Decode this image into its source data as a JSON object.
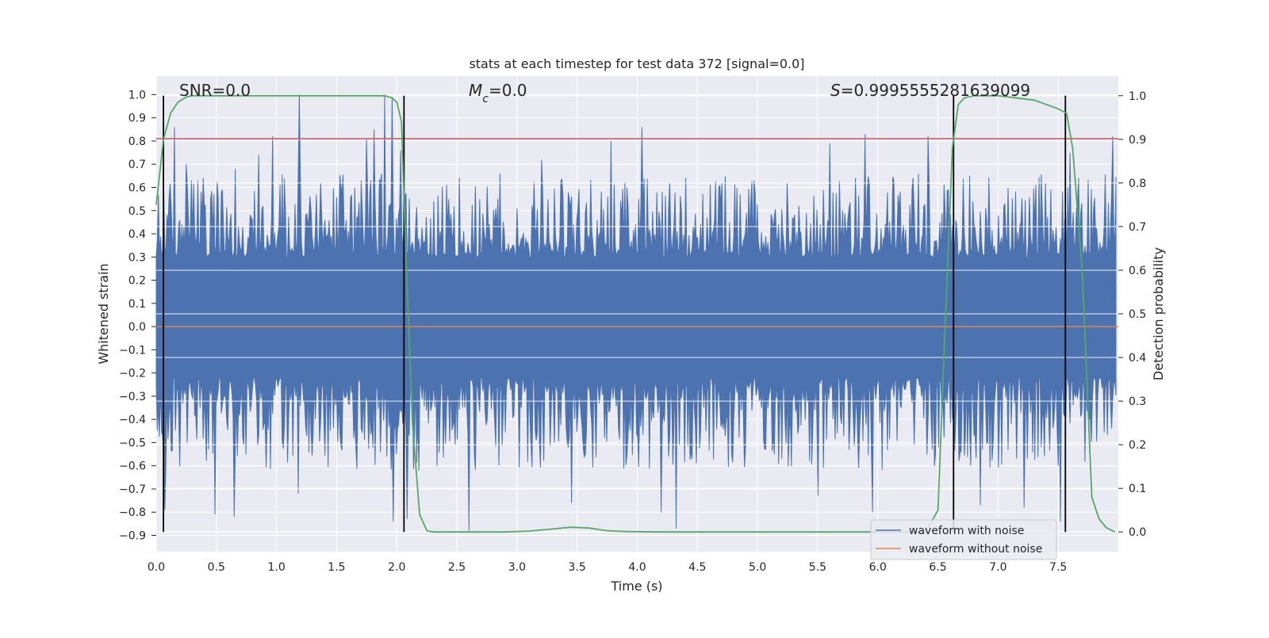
{
  "chart_data": {
    "type": "line",
    "title": "stats at each timestep for test data 372 [signal=0.0]",
    "xlabel": "Time (s)",
    "ylabel": "Whitened strain",
    "ylabel_right": "Detection probability",
    "xlim": [
      0.0,
      8.0
    ],
    "ylim": [
      -0.97,
      1.08
    ],
    "ylim_right": [
      -0.045,
      1.045
    ],
    "xticks": [
      0.0,
      0.5,
      1.0,
      1.5,
      2.0,
      2.5,
      3.0,
      3.5,
      4.0,
      4.5,
      5.0,
      5.5,
      6.0,
      6.5,
      7.0,
      7.5
    ],
    "xtick_labels": [
      "0.0",
      "0.5",
      "1.0",
      "1.5",
      "2.0",
      "2.5",
      "3.0",
      "3.5",
      "4.0",
      "4.5",
      "5.0",
      "5.5",
      "6.0",
      "6.5",
      "7.0",
      "7.5"
    ],
    "yticks": [
      -0.9,
      -0.8,
      -0.7,
      -0.6,
      -0.5,
      -0.4,
      -0.3,
      -0.2,
      -0.1,
      0.0,
      0.1,
      0.2,
      0.3,
      0.4,
      0.5,
      0.6,
      0.7,
      0.8,
      0.9,
      1.0
    ],
    "ytick_labels": [
      "−0.9",
      "−0.8",
      "−0.7",
      "−0.6",
      "−0.5",
      "−0.4",
      "−0.3",
      "−0.2",
      "−0.1",
      "0.0",
      "0.1",
      "0.2",
      "0.3",
      "0.4",
      "0.5",
      "0.6",
      "0.7",
      "0.8",
      "0.9",
      "1.0"
    ],
    "yticks_right": [
      0.0,
      0.1,
      0.2,
      0.3,
      0.4,
      0.5,
      0.6,
      0.7,
      0.8,
      0.9,
      1.0
    ],
    "ytick_labels_right": [
      "0.0",
      "0.1",
      "0.2",
      "0.3",
      "0.4",
      "0.5",
      "0.6",
      "0.7",
      "0.8",
      "0.9",
      "1.0"
    ],
    "grid": true,
    "legend_position": "lower right",
    "legend": [
      {
        "label": "waveform with noise",
        "color": "#4c72b0"
      },
      {
        "label": "waveform without noise",
        "color": "#dd8452"
      }
    ],
    "series": [
      {
        "name": "waveform with noise",
        "axis": "left",
        "color": "#4c72b0",
        "kind": "noise",
        "peaks": [
          {
            "x": 0.15,
            "y": 0.86
          },
          {
            "x": 0.25,
            "y": 0.7
          },
          {
            "x": 0.45,
            "y": 0.55
          },
          {
            "x": 0.55,
            "y": 0.59
          },
          {
            "x": 0.66,
            "y": 0.68
          },
          {
            "x": 0.85,
            "y": 0.74
          },
          {
            "x": 0.97,
            "y": 0.82
          },
          {
            "x": 1.19,
            "y": 1.0
          },
          {
            "x": 1.33,
            "y": 0.57
          },
          {
            "x": 1.65,
            "y": 0.6
          },
          {
            "x": 1.75,
            "y": 0.81
          },
          {
            "x": 1.81,
            "y": 0.85
          },
          {
            "x": 1.9,
            "y": 1.0
          },
          {
            "x": 1.96,
            "y": 0.99
          },
          {
            "x": 2.03,
            "y": 0.76
          },
          {
            "x": 3.2,
            "y": 0.72
          },
          {
            "x": 3.78,
            "y": 0.8
          },
          {
            "x": 4.04,
            "y": 0.86
          },
          {
            "x": 5.6,
            "y": 0.79
          },
          {
            "x": 5.89,
            "y": 0.83
          },
          {
            "x": 6.42,
            "y": 0.82
          },
          {
            "x": 7.6,
            "y": 0.75
          },
          {
            "x": 7.95,
            "y": 0.82
          }
        ],
        "troughs": [
          {
            "x": 0.07,
            "y": -0.79
          },
          {
            "x": 0.49,
            "y": -0.81
          },
          {
            "x": 0.65,
            "y": -0.82
          },
          {
            "x": 1.18,
            "y": -0.72
          },
          {
            "x": 1.97,
            "y": -0.84
          },
          {
            "x": 2.09,
            "y": -0.83
          },
          {
            "x": 2.18,
            "y": -0.62
          },
          {
            "x": 2.6,
            "y": -0.88
          },
          {
            "x": 3.45,
            "y": -0.76
          },
          {
            "x": 4.2,
            "y": -0.8
          },
          {
            "x": 4.32,
            "y": -0.87
          },
          {
            "x": 5.5,
            "y": -0.73
          },
          {
            "x": 5.96,
            "y": -0.8
          },
          {
            "x": 6.85,
            "y": -0.77
          },
          {
            "x": 7.22,
            "y": -0.78
          },
          {
            "x": 7.52,
            "y": -0.84
          }
        ]
      },
      {
        "name": "waveform without noise",
        "axis": "left",
        "color": "#dd8452",
        "x": [
          0.0,
          8.0
        ],
        "y": [
          0.0,
          0.0
        ]
      },
      {
        "name": "detection probability",
        "axis": "right",
        "color": "#55a868",
        "x": [
          0.0,
          0.06,
          0.12,
          0.18,
          0.25,
          0.3,
          0.35,
          0.4,
          0.6,
          1.0,
          1.5,
          1.9,
          1.96,
          2.0,
          2.04,
          2.07,
          2.13,
          2.19,
          2.25,
          2.3,
          2.6,
          2.9,
          3.1,
          3.3,
          3.45,
          3.6,
          3.75,
          3.9,
          4.2,
          5.0,
          6.0,
          6.4,
          6.5,
          6.55,
          6.62,
          6.67,
          6.72,
          6.8,
          7.0,
          7.3,
          7.5,
          7.57,
          7.62,
          7.7,
          7.78,
          7.84,
          7.9,
          7.97
        ],
        "y": [
          0.75,
          0.9,
          0.96,
          0.985,
          0.997,
          1.0,
          1.0,
          1.0,
          1.0,
          1.0,
          1.0,
          1.0,
          0.995,
          0.985,
          0.94,
          0.68,
          0.25,
          0.04,
          0.003,
          0.0,
          0.0,
          0.0,
          0.002,
          0.007,
          0.011,
          0.009,
          0.003,
          0.001,
          0.0,
          0.0,
          0.0,
          0.0,
          0.05,
          0.4,
          0.88,
          0.98,
          0.995,
          1.0,
          1.0,
          0.99,
          0.97,
          0.96,
          0.88,
          0.6,
          0.08,
          0.03,
          0.01,
          0.0
        ]
      }
    ],
    "hlines": [
      {
        "y": 0.81,
        "color": "#c44e52",
        "axis": "left"
      }
    ],
    "vlines": [
      {
        "x": 0.06,
        "color": "#000000"
      },
      {
        "x": 2.06,
        "color": "#000000"
      },
      {
        "x": 6.63,
        "color": "#000000"
      },
      {
        "x": 7.56,
        "color": "#000000"
      }
    ],
    "annotations": [
      {
        "text_parts": [
          {
            "t": "SNR=0.0",
            "italic": false
          }
        ]
      },
      {
        "text_parts": [
          {
            "t": "M",
            "italic": true
          },
          {
            "t": "c",
            "italic": true,
            "sub": true
          },
          {
            "t": "=0.0",
            "italic": false
          }
        ]
      },
      {
        "text_parts": [
          {
            "t": "S",
            "italic": true
          },
          {
            "t": "=0.9995555281639099",
            "italic": false
          }
        ]
      }
    ]
  }
}
